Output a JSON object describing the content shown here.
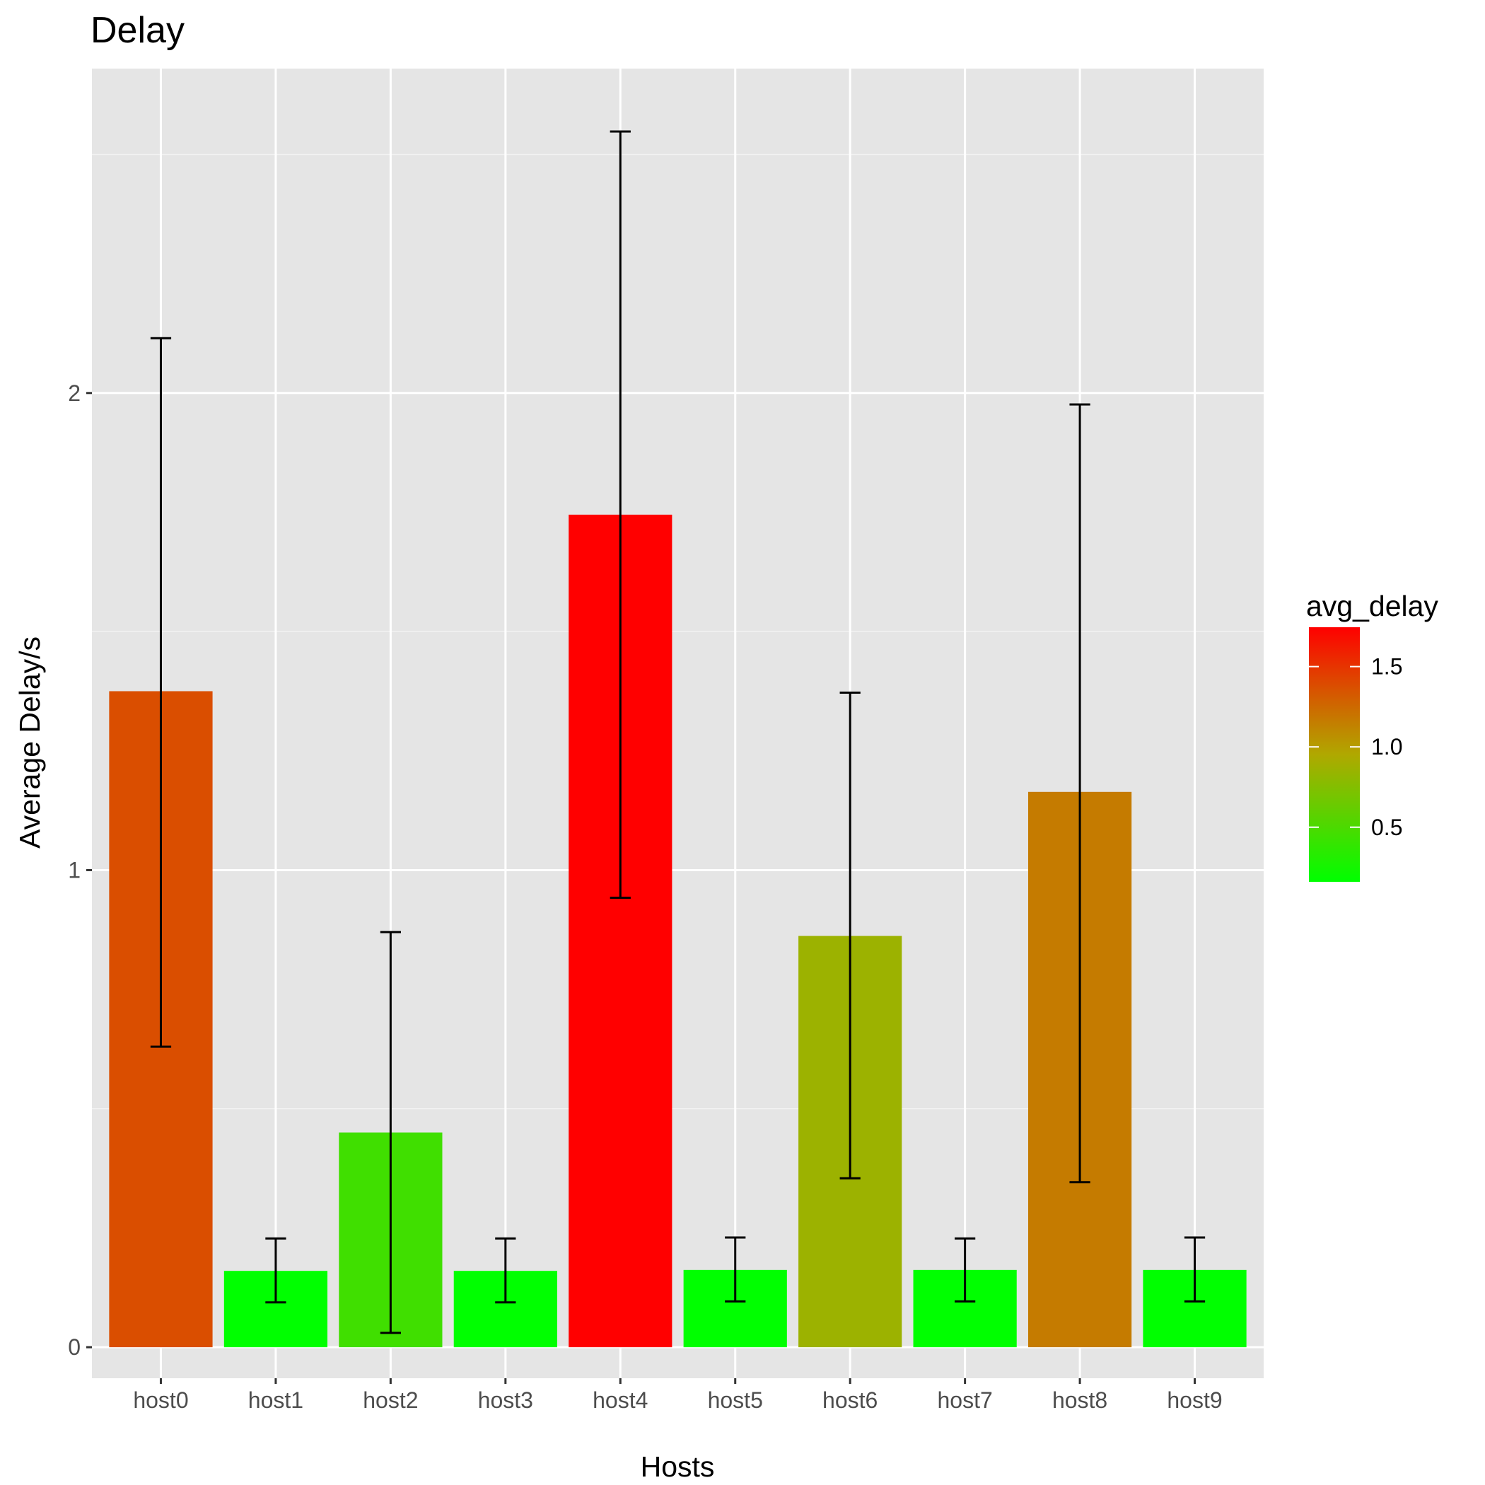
{
  "chart_data": {
    "type": "bar",
    "title": "Delay",
    "xlabel": "Hosts",
    "ylabel": "Average Delay/s",
    "categories": [
      "host0",
      "host1",
      "host2",
      "host3",
      "host4",
      "host5",
      "host6",
      "host7",
      "host8",
      "host9"
    ],
    "values": [
      1.375,
      0.16,
      0.45,
      0.16,
      1.745,
      0.162,
      0.862,
      0.162,
      1.164,
      0.162
    ],
    "error_low": [
      0.63,
      0.094,
      0.03,
      0.094,
      0.942,
      0.096,
      0.354,
      0.096,
      0.346,
      0.096
    ],
    "error_high": [
      2.115,
      0.228,
      0.87,
      0.228,
      2.548,
      0.23,
      1.372,
      0.228,
      1.976,
      0.23
    ],
    "ylim": [
      -0.065,
      2.68
    ],
    "yticks": [
      0,
      1,
      2
    ],
    "ytick_labels": [
      "0",
      "1",
      "2"
    ],
    "grid": true,
    "background": "#e5e5e5",
    "legend": {
      "title": "avg_delay",
      "position": "right",
      "range": [
        0.16,
        1.745
      ],
      "ticks": [
        0.5,
        1.0,
        1.5
      ],
      "tick_labels": [
        "0.5",
        "1.0",
        "1.5"
      ],
      "low_color": "#00ff00",
      "high_color": "#ff0000"
    }
  }
}
